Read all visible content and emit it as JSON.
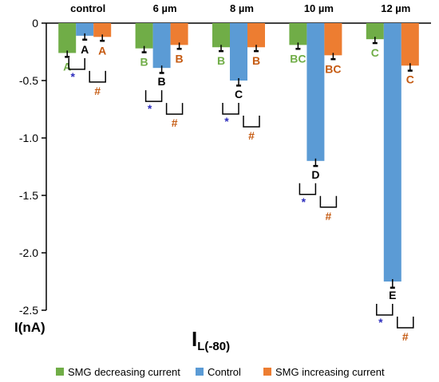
{
  "chart_data": {
    "type": "bar",
    "categories": [
      "control",
      "6 µm",
      "8 µm",
      "10 µm",
      "12 µm"
    ],
    "series": [
      {
        "name": "SMG decreasing current",
        "color": "#70ad47",
        "values": [
          -0.26,
          -0.22,
          -0.21,
          -0.19,
          -0.14
        ],
        "letters": [
          "A",
          "B",
          "B",
          "BC",
          "C"
        ],
        "letter_color": "#70ad47"
      },
      {
        "name": "Control",
        "color": "#5b9bd5",
        "values": [
          -0.11,
          -0.39,
          -0.5,
          -1.2,
          -2.25
        ],
        "letters": [
          "A",
          "B",
          "C",
          "D",
          "E"
        ],
        "letter_color": "#000000"
      },
      {
        "name": "SMG increasing current",
        "color": "#ed7d31",
        "values": [
          -0.12,
          -0.19,
          -0.21,
          -0.28,
          -0.37
        ],
        "letters": [
          "A",
          "B",
          "B",
          "BC",
          "C"
        ],
        "letter_color": "#c55a11"
      }
    ],
    "errors": [
      [
        0.02,
        0.02,
        0.02,
        0.02,
        0.02
      ],
      [
        0.02,
        0.03,
        0.03,
        0.03,
        0.04
      ],
      [
        0.02,
        0.02,
        0.02,
        0.02,
        0.03
      ]
    ],
    "ylim": [
      -2.5,
      0
    ],
    "yticks": [
      0,
      -0.5,
      -1.0,
      -1.5,
      -2.0,
      -2.5
    ],
    "ytick_labels": [
      "0",
      "-0.5",
      "-1.0",
      "-1.5",
      "-2.0",
      "-2.5"
    ],
    "ylabel": "I(nA)",
    "annotation_main": "I",
    "annotation_sub": "L(-80)",
    "significance": {
      "star": "*",
      "hash": "#",
      "star_color": "#2e2ebd",
      "hash_color": "#c55a11"
    },
    "legend_position": "bottom",
    "grid": false
  }
}
